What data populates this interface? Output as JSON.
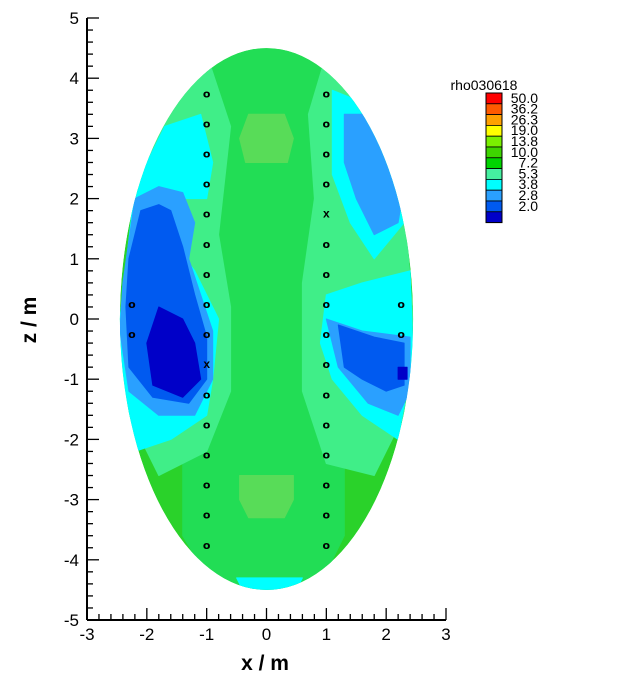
{
  "chart_data": {
    "type": "heatmap",
    "title": "",
    "xlabel": "x / m",
    "ylabel": "z / m",
    "xlim": [
      -3,
      3
    ],
    "ylim": [
      -5,
      5
    ],
    "x_ticks": [
      -3,
      -2,
      -1,
      0,
      1,
      2,
      3
    ],
    "y_ticks": [
      -5,
      -4,
      -3,
      -2,
      -1,
      0,
      1,
      2,
      3,
      4,
      5
    ],
    "domain_shape": "ellipse",
    "domain": {
      "center_x": 0,
      "center_z": 0,
      "semi_axis_x": 2.45,
      "semi_axis_z": 4.5
    },
    "legend": {
      "title": "rho030618",
      "placement": "right",
      "levels": [
        "50.0",
        "36.2",
        "26.3",
        "19.0",
        "13.8",
        "10.0",
        "7.2",
        "5.3",
        "3.8",
        "2.8",
        "2.0"
      ],
      "colors": [
        "#ff0000",
        "#ff5a00",
        "#ffa000",
        "#ffff00",
        "#7af000",
        "#3ed500",
        "#00d400",
        "#45f0a0",
        "#00ffff",
        "#2aa0ff",
        "#005af0",
        "#0000c8"
      ]
    },
    "background_color": "#2ad22a",
    "regions": [
      {
        "level": 7.2,
        "color": "#22dd55",
        "points": [
          [
            -0.8,
            4.6
          ],
          [
            0.8,
            4.6
          ],
          [
            1.2,
            3.2
          ],
          [
            1.5,
            2.0
          ],
          [
            1.3,
            1.0
          ],
          [
            1.5,
            0.0
          ],
          [
            1.6,
            -1.0
          ],
          [
            1.3,
            -2.2
          ],
          [
            1.3,
            -3.6
          ],
          [
            0.8,
            -4.6
          ],
          [
            -0.8,
            -4.6
          ],
          [
            -1.4,
            -3.6
          ],
          [
            -1.4,
            -2.2
          ],
          [
            -1.1,
            -1.0
          ],
          [
            -1.0,
            0.0
          ],
          [
            -1.2,
            1.2
          ],
          [
            -1.4,
            2.2
          ],
          [
            -1.2,
            3.6
          ]
        ]
      },
      {
        "level": 7.2,
        "color": "#40ee88",
        "points": [
          [
            -2.45,
            0.0
          ],
          [
            -2.1,
            2.6
          ],
          [
            -1.6,
            3.8
          ],
          [
            -1.0,
            4.4
          ],
          [
            -0.6,
            3.2
          ],
          [
            -0.8,
            1.4
          ],
          [
            -0.6,
            0.2
          ],
          [
            -0.6,
            -1.2
          ],
          [
            -1.0,
            -2.2
          ],
          [
            -1.8,
            -2.6
          ],
          [
            -2.3,
            -1.6
          ]
        ]
      },
      {
        "level": 7.2,
        "color": "#40ee88",
        "points": [
          [
            1.0,
            4.4
          ],
          [
            1.8,
            3.6
          ],
          [
            2.3,
            2.0
          ],
          [
            2.45,
            0.0
          ],
          [
            2.3,
            -1.6
          ],
          [
            1.8,
            -2.6
          ],
          [
            1.0,
            -2.4
          ],
          [
            0.6,
            -1.2
          ],
          [
            0.6,
            0.6
          ],
          [
            0.8,
            2.0
          ],
          [
            0.7,
            3.4
          ]
        ]
      },
      {
        "level": 5.3,
        "color": "#00ffff",
        "points": [
          [
            -2.45,
            0.0
          ],
          [
            -2.2,
            2.2
          ],
          [
            -1.7,
            3.2
          ],
          [
            -1.1,
            3.4
          ],
          [
            -0.9,
            2.6
          ],
          [
            -1.0,
            2.0
          ],
          [
            -1.5,
            2.0
          ],
          [
            -1.5,
            1.2
          ],
          [
            -1.2,
            0.8
          ],
          [
            -0.8,
            0.0
          ],
          [
            -0.9,
            -1.0
          ],
          [
            -1.0,
            -1.6
          ],
          [
            -1.6,
            -2.0
          ],
          [
            -2.2,
            -2.2
          ],
          [
            -2.4,
            -1.2
          ]
        ]
      },
      {
        "level": 5.3,
        "color": "#00ffff",
        "points": [
          [
            1.1,
            3.8
          ],
          [
            1.6,
            3.6
          ],
          [
            2.3,
            2.6
          ],
          [
            2.3,
            1.6
          ],
          [
            1.8,
            1.0
          ],
          [
            1.4,
            1.6
          ],
          [
            1.1,
            2.4
          ]
        ]
      },
      {
        "level": 5.3,
        "color": "#00ffff",
        "points": [
          [
            1.0,
            0.4
          ],
          [
            1.6,
            0.6
          ],
          [
            2.4,
            0.8
          ],
          [
            2.45,
            -0.6
          ],
          [
            2.2,
            -2.0
          ],
          [
            1.6,
            -1.6
          ],
          [
            1.1,
            -1.0
          ],
          [
            0.9,
            -0.4
          ]
        ]
      },
      {
        "level": 5.3,
        "color": "#00ffff",
        "points": [
          [
            -0.5,
            -4.3
          ],
          [
            0.6,
            -4.3
          ],
          [
            0.4,
            -4.7
          ],
          [
            -0.3,
            -4.7
          ]
        ]
      },
      {
        "level": 3.8,
        "color": "#2aa0ff",
        "points": [
          [
            -2.4,
            0.6
          ],
          [
            -2.2,
            2.0
          ],
          [
            -1.8,
            2.2
          ],
          [
            -1.4,
            2.1
          ],
          [
            -1.2,
            1.6
          ],
          [
            -1.3,
            1.0
          ],
          [
            -1.1,
            0.4
          ],
          [
            -0.9,
            -0.2
          ],
          [
            -0.9,
            -1.0
          ],
          [
            -1.2,
            -1.6
          ],
          [
            -1.8,
            -1.6
          ],
          [
            -2.3,
            -1.2
          ],
          [
            -2.45,
            -0.2
          ]
        ]
      },
      {
        "level": 3.8,
        "color": "#2aa0ff",
        "points": [
          [
            1.3,
            3.4
          ],
          [
            1.8,
            3.4
          ],
          [
            2.3,
            2.2
          ],
          [
            2.2,
            1.6
          ],
          [
            1.8,
            1.4
          ],
          [
            1.5,
            2.0
          ],
          [
            1.3,
            2.6
          ]
        ]
      },
      {
        "level": 3.8,
        "color": "#2aa0ff",
        "points": [
          [
            1.0,
            0.0
          ],
          [
            1.6,
            -0.2
          ],
          [
            2.4,
            -0.3
          ],
          [
            2.4,
            -1.2
          ],
          [
            2.2,
            -1.6
          ],
          [
            1.7,
            -1.4
          ],
          [
            1.2,
            -0.8
          ]
        ]
      },
      {
        "level": 2.8,
        "color": "#005af0",
        "points": [
          [
            -2.3,
            1.0
          ],
          [
            -2.1,
            1.8
          ],
          [
            -1.8,
            1.9
          ],
          [
            -1.6,
            1.8
          ],
          [
            -1.4,
            1.2
          ],
          [
            -1.2,
            0.4
          ],
          [
            -1.0,
            -0.3
          ],
          [
            -1.0,
            -1.0
          ],
          [
            -1.3,
            -1.4
          ],
          [
            -1.9,
            -1.3
          ],
          [
            -2.3,
            -0.8
          ],
          [
            -2.35,
            0.2
          ]
        ]
      },
      {
        "level": 2.8,
        "color": "#005af0",
        "points": [
          [
            1.2,
            -0.1
          ],
          [
            1.8,
            -0.3
          ],
          [
            2.3,
            -0.4
          ],
          [
            2.3,
            -1.1
          ],
          [
            2.0,
            -1.2
          ],
          [
            1.6,
            -1.0
          ],
          [
            1.3,
            -0.8
          ]
        ]
      },
      {
        "level": 2.0,
        "color": "#0000c8",
        "points": [
          [
            -2.0,
            -0.4
          ],
          [
            -1.8,
            0.2
          ],
          [
            -1.4,
            0.0
          ],
          [
            -1.2,
            -0.4
          ],
          [
            -1.1,
            -1.0
          ],
          [
            -1.4,
            -1.3
          ],
          [
            -1.9,
            -1.1
          ]
        ]
      },
      {
        "level": 2.0,
        "color": "#0000c8",
        "points": [
          [
            2.2,
            -1.0
          ],
          [
            2.35,
            -1.0
          ],
          [
            2.35,
            -0.8
          ],
          [
            2.2,
            -0.8
          ]
        ]
      },
      {
        "level": 10.0,
        "color": "#58dc58",
        "points": [
          [
            -0.35,
            2.6
          ],
          [
            0.35,
            2.6
          ],
          [
            0.45,
            3.0
          ],
          [
            0.3,
            3.4
          ],
          [
            -0.3,
            3.4
          ],
          [
            -0.45,
            3.0
          ]
        ]
      },
      {
        "level": 10.0,
        "color": "#58dc58",
        "points": [
          [
            -0.45,
            -2.6
          ],
          [
            0.45,
            -2.6
          ],
          [
            0.45,
            -3.0
          ],
          [
            0.3,
            -3.3
          ],
          [
            -0.3,
            -3.3
          ],
          [
            -0.45,
            -3.0
          ]
        ]
      }
    ],
    "electrodes": [
      {
        "x": -1,
        "z": 3.75,
        "marker": "o"
      },
      {
        "x": -1,
        "z": 3.25,
        "marker": "o"
      },
      {
        "x": -1,
        "z": 2.75,
        "marker": "o"
      },
      {
        "x": -1,
        "z": 2.25,
        "marker": "o"
      },
      {
        "x": -1,
        "z": 1.75,
        "marker": "o"
      },
      {
        "x": -1,
        "z": 1.25,
        "marker": "o"
      },
      {
        "x": -1,
        "z": 0.75,
        "marker": "o"
      },
      {
        "x": -1,
        "z": 0.25,
        "marker": "o"
      },
      {
        "x": -1,
        "z": -0.25,
        "marker": "o"
      },
      {
        "x": -1,
        "z": -0.75,
        "marker": "x"
      },
      {
        "x": -1,
        "z": -1.25,
        "marker": "o"
      },
      {
        "x": -1,
        "z": -1.75,
        "marker": "o"
      },
      {
        "x": -1,
        "z": -2.25,
        "marker": "o"
      },
      {
        "x": -1,
        "z": -2.75,
        "marker": "o"
      },
      {
        "x": -1,
        "z": -3.25,
        "marker": "o"
      },
      {
        "x": -1,
        "z": -3.75,
        "marker": "o"
      },
      {
        "x": 1,
        "z": 3.75,
        "marker": "o"
      },
      {
        "x": 1,
        "z": 3.25,
        "marker": "o"
      },
      {
        "x": 1,
        "z": 2.75,
        "marker": "o"
      },
      {
        "x": 1,
        "z": 2.25,
        "marker": "o"
      },
      {
        "x": 1,
        "z": 1.75,
        "marker": "x"
      },
      {
        "x": 1,
        "z": 1.25,
        "marker": "o"
      },
      {
        "x": 1,
        "z": 0.75,
        "marker": "o"
      },
      {
        "x": 1,
        "z": 0.25,
        "marker": "o"
      },
      {
        "x": 1,
        "z": -0.25,
        "marker": "o"
      },
      {
        "x": 1,
        "z": -0.75,
        "marker": "o"
      },
      {
        "x": 1,
        "z": -1.25,
        "marker": "o"
      },
      {
        "x": 1,
        "z": -1.75,
        "marker": "o"
      },
      {
        "x": 1,
        "z": -2.25,
        "marker": "o"
      },
      {
        "x": 1,
        "z": -2.75,
        "marker": "o"
      },
      {
        "x": 1,
        "z": -3.25,
        "marker": "o"
      },
      {
        "x": 1,
        "z": -3.75,
        "marker": "o"
      },
      {
        "x": -2.25,
        "z": 0.25,
        "marker": "o"
      },
      {
        "x": -2.25,
        "z": -0.25,
        "marker": "o"
      },
      {
        "x": 2.25,
        "z": 0.25,
        "marker": "o"
      },
      {
        "x": 2.25,
        "z": -0.25,
        "marker": "o"
      }
    ]
  }
}
